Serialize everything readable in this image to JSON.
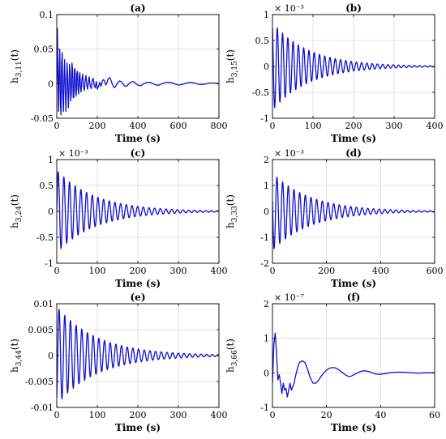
{
  "chart_data": [
    {
      "type": "line",
      "title": "(a)",
      "xlabel": "Time (s)",
      "ylabel": "h",
      "ylabel_sub": "3,11",
      "ylabel_arg": "(t)",
      "xlim": [
        0,
        800
      ],
      "ylim": [
        -0.05,
        0.1
      ],
      "xticks": [
        0,
        200,
        400,
        600,
        800
      ],
      "yticks": [
        -0.05,
        0,
        0.05,
        0.1
      ],
      "xtick_labels": [
        "0",
        "200",
        "400",
        "600",
        "800"
      ],
      "ytick_labels": [
        "-0.05",
        "0",
        "0.05",
        "0.1"
      ],
      "exponent": "",
      "grid": true,
      "series_color": "#1010d0",
      "series": [
        {
          "x": [
            0,
            3,
            6,
            9,
            12,
            15,
            18,
            21,
            24,
            27,
            30,
            33,
            36,
            39,
            42,
            45,
            48,
            51,
            54,
            57,
            60,
            63,
            66,
            69,
            72,
            75,
            78,
            81,
            84,
            87,
            90,
            93,
            96,
            99,
            102,
            105,
            108,
            111,
            114,
            117,
            120,
            124,
            128,
            132,
            136,
            140,
            144,
            148,
            152,
            156,
            160,
            165,
            170,
            175,
            180,
            185,
            190,
            195,
            200,
            206,
            212,
            218,
            224,
            230,
            236,
            242,
            248,
            254,
            260,
            266,
            272,
            278,
            284,
            290,
            296,
            302,
            310,
            318,
            326,
            334,
            342,
            350,
            360,
            370,
            380,
            390,
            400,
            415,
            430,
            445,
            460,
            475,
            490,
            505,
            520,
            540,
            560,
            580,
            600,
            620,
            640,
            660,
            680,
            700,
            720,
            740,
            760,
            780,
            800
          ],
          "y": [
            0.0,
            0.08,
            0.01,
            -0.04,
            0.02,
            0.05,
            -0.03,
            -0.045,
            0.03,
            0.045,
            -0.02,
            -0.04,
            0.01,
            0.035,
            -0.01,
            -0.04,
            0.0,
            0.03,
            0.005,
            -0.035,
            -0.01,
            0.028,
            0.015,
            -0.025,
            -0.015,
            0.03,
            0.02,
            -0.02,
            -0.02,
            0.02,
            0.022,
            -0.012,
            -0.018,
            0.015,
            0.018,
            -0.008,
            -0.015,
            0.01,
            0.016,
            -0.005,
            -0.012,
            0.006,
            0.014,
            -0.004,
            -0.01,
            0.004,
            0.012,
            -0.002,
            -0.008,
            0.002,
            0.01,
            -0.003,
            -0.007,
            0.004,
            0.008,
            -0.003,
            -0.006,
            0.003,
            -0.008,
            -0.004,
            0.002,
            -0.004,
            0.003,
            0.006,
            0.004,
            -0.002,
            0.002,
            0.007,
            0.009,
            0.006,
            0.001,
            -0.003,
            -0.006,
            -0.004,
            -0.001,
            0.002,
            0.004,
            0.003,
            0.0,
            -0.003,
            -0.004,
            -0.002,
            0.001,
            0.003,
            0.003,
            0.0,
            -0.002,
            -0.003,
            0.0,
            0.002,
            0.002,
            0.0,
            -0.002,
            -0.002,
            0.0,
            0.002,
            0.002,
            0.0,
            -0.002,
            -0.001,
            0.001,
            0.002,
            0.001,
            -0.001,
            -0.001,
            0.0,
            0.001,
            0.001,
            0.0
          ]
        }
      ]
    },
    {
      "type": "line",
      "title": "(b)",
      "xlabel": "Time (s)",
      "ylabel": "h",
      "ylabel_sub": "3,15",
      "ylabel_arg": "(t)",
      "xlim": [
        0,
        400
      ],
      "ylim": [
        -1,
        1
      ],
      "xticks": [
        0,
        100,
        200,
        300,
        400
      ],
      "yticks": [
        -1,
        -0.5,
        0,
        0.5,
        1
      ],
      "xtick_labels": [
        "0",
        "100",
        "200",
        "300",
        "400"
      ],
      "ytick_labels": [
        "-1",
        "-0.5",
        "0",
        "0.5",
        "1"
      ],
      "exponent": "× 10⁻³",
      "grid": true,
      "series_color": "#1010d0",
      "model": {
        "kind": "damped",
        "A": 0.85,
        "tau": 90,
        "period": 13,
        "phase": 0.5,
        "t_end": 400,
        "samples": 500
      }
    },
    {
      "type": "line",
      "title": "(c)",
      "xlabel": "Time (s)",
      "ylabel": "h",
      "ylabel_sub": "3,24",
      "ylabel_arg": "(t)",
      "xlim": [
        0,
        400
      ],
      "ylim": [
        -1,
        1
      ],
      "xticks": [
        0,
        100,
        200,
        300,
        400
      ],
      "yticks": [
        -1,
        -0.5,
        0,
        0.5,
        1
      ],
      "xtick_labels": [
        "0",
        "100",
        "200",
        "300",
        "400"
      ],
      "ytick_labels": [
        "-1",
        "-0.5",
        "0",
        "0.5",
        "1"
      ],
      "exponent": "× 10⁻³",
      "grid": true,
      "series_color": "#1010d0",
      "model": {
        "kind": "damped",
        "A": 0.8,
        "tau": 95,
        "period": 14,
        "phase": -1.6,
        "t_end": 400,
        "samples": 500
      }
    },
    {
      "type": "line",
      "title": "(d)",
      "xlabel": "Time (s)",
      "ylabel": "h",
      "ylabel_sub": "3,33",
      "ylabel_arg": "(t)",
      "xlim": [
        0,
        600
      ],
      "ylim": [
        -2,
        2
      ],
      "xticks": [
        0,
        200,
        400,
        600
      ],
      "yticks": [
        -2,
        -1,
        0,
        1,
        2
      ],
      "xtick_labels": [
        "0",
        "200",
        "400",
        "600"
      ],
      "ytick_labels": [
        "-2",
        "-1",
        "0",
        "1",
        "2"
      ],
      "exponent": "× 10⁻³",
      "grid": true,
      "series_color": "#1010d0",
      "model": {
        "kind": "damped",
        "A": 1.5,
        "tau": 140,
        "period": 21,
        "phase": 1.3,
        "t_end": 600,
        "samples": 600
      }
    },
    {
      "type": "line",
      "title": "(e)",
      "xlabel": "Time (s)",
      "ylabel": "h",
      "ylabel_sub": "3,44",
      "ylabel_arg": "(t)",
      "xlim": [
        0,
        400
      ],
      "ylim": [
        -0.01,
        0.01
      ],
      "xticks": [
        0,
        100,
        200,
        300,
        400
      ],
      "yticks": [
        -0.01,
        -0.005,
        0,
        0.005,
        0.01
      ],
      "xtick_labels": [
        "0",
        "100",
        "200",
        "300",
        "400"
      ],
      "ytick_labels": [
        "-0.01",
        "-0.005",
        "0",
        "0.005",
        "0.01"
      ],
      "exponent": "",
      "grid": true,
      "series_color": "#1010d0",
      "model": {
        "kind": "damped",
        "A": 0.0095,
        "tau": 100,
        "period": 14,
        "phase": -2.6,
        "t_end": 400,
        "samples": 500
      }
    },
    {
      "type": "line",
      "title": "(f)",
      "xlabel": "Time (s)",
      "ylabel": "h",
      "ylabel_sub": "3,66",
      "ylabel_arg": "(t)",
      "xlim": [
        0,
        60
      ],
      "ylim": [
        -1,
        2
      ],
      "xticks": [
        0,
        20,
        40,
        60
      ],
      "yticks": [
        -1,
        0,
        1,
        2
      ],
      "xtick_labels": [
        "0",
        "20",
        "40",
        "60"
      ],
      "ytick_labels": [
        "-1",
        "0",
        "1",
        "2"
      ],
      "exponent": "× 10⁻⁷",
      "grid": true,
      "series_color": "#1010d0",
      "series": [
        {
          "x": [
            0,
            0.5,
            1.0,
            1.5,
            2.0,
            2.5,
            3.0,
            3.5,
            4.0,
            4.5,
            5.0,
            5.5,
            6.0,
            6.5,
            7.0,
            7.5,
            8.0,
            8.5,
            9.0,
            9.5,
            10,
            11,
            12,
            13,
            14,
            15,
            16,
            17,
            18,
            19,
            20,
            21,
            22,
            23,
            24,
            25,
            26,
            27,
            28,
            29,
            30,
            31,
            32,
            33,
            34,
            35,
            36,
            37,
            38,
            39,
            40,
            42,
            44,
            46,
            48,
            50,
            52,
            54,
            56,
            58,
            60
          ],
          "y": [
            -0.3,
            0.8,
            1.15,
            0.6,
            -0.2,
            -0.05,
            -0.3,
            -0.6,
            -0.3,
            -0.5,
            -0.45,
            -0.7,
            -0.5,
            -0.3,
            -0.5,
            -0.4,
            -0.3,
            -0.1,
            0.05,
            0.2,
            0.3,
            0.35,
            0.3,
            0.1,
            -0.15,
            -0.3,
            -0.3,
            -0.22,
            -0.1,
            0.0,
            0.08,
            0.13,
            0.15,
            0.15,
            0.12,
            0.06,
            0.0,
            -0.06,
            -0.1,
            -0.1,
            -0.06,
            -0.02,
            0.02,
            0.05,
            0.06,
            0.05,
            0.03,
            0.0,
            -0.03,
            -0.04,
            -0.04,
            -0.02,
            0.01,
            0.02,
            0.02,
            0.01,
            0.0,
            -0.01,
            0.0,
            0.0,
            0.0
          ]
        }
      ]
    }
  ]
}
